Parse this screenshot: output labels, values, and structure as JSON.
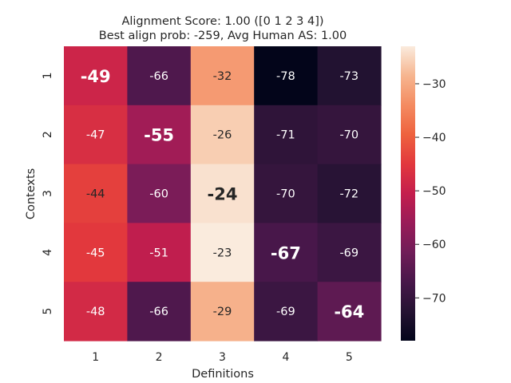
{
  "chart_data": {
    "type": "heatmap",
    "title_lines": [
      "Alignment Score: 1.00 ([0 1 2 3 4])",
      "Best align prob: -259, Avg Human AS: 1.00"
    ],
    "xlabel": "Definitions",
    "ylabel": "Contexts",
    "x_categories": [
      "1",
      "2",
      "3",
      "4",
      "5"
    ],
    "y_categories": [
      "1",
      "2",
      "3",
      "4",
      "5"
    ],
    "values": [
      [
        -49,
        -66,
        -32,
        -78,
        -73
      ],
      [
        -47,
        -55,
        -26,
        -71,
        -70
      ],
      [
        -44,
        -60,
        -24,
        -70,
        -72
      ],
      [
        -45,
        -51,
        -23,
        -67,
        -69
      ],
      [
        -48,
        -66,
        -29,
        -69,
        -64
      ]
    ],
    "cell_labels": [
      [
        "-49",
        "-66",
        "-32",
        "-78",
        "-73"
      ],
      [
        "-47",
        "-55",
        "-26",
        "-71",
        "-70"
      ],
      [
        "-44",
        "-60",
        "-24",
        "-70",
        "-72"
      ],
      [
        "-45",
        "-51",
        "-23",
        "-67",
        "-69"
      ],
      [
        "-48",
        "-66",
        "-29",
        "-69",
        "-64"
      ]
    ],
    "highlighted_cells": [
      [
        0,
        0
      ],
      [
        1,
        1
      ],
      [
        2,
        2
      ],
      [
        3,
        3
      ],
      [
        4,
        4
      ]
    ],
    "colormap": "rocket",
    "vmin": -78,
    "vmax": -23,
    "colorbar_ticks": [
      -30,
      -40,
      -50,
      -60,
      -70
    ],
    "colorbar_tick_labels": [
      "−30",
      "−40",
      "−50",
      "−60",
      "−70"
    ]
  }
}
